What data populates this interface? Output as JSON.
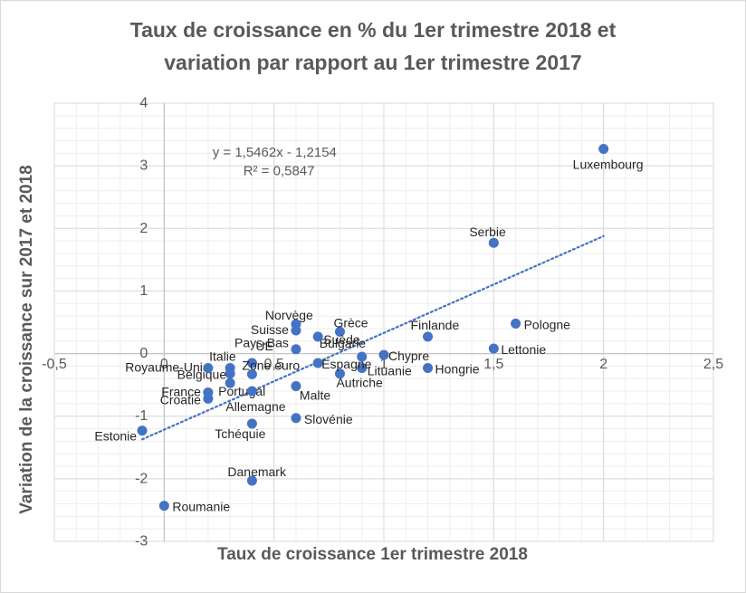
{
  "chart_data": {
    "type": "scatter",
    "title_line1": "Taux de croissance en % du 1er trimestre 2018 et",
    "title_line2": "variation par rapport au 1er trimestre 2017",
    "xlabel": "Taux de croissance 1er trimestre 2018",
    "ylabel": "Variation de la croissance sur 2017 et 2018",
    "xlim": [
      -0.5,
      2.5
    ],
    "ylim": [
      -3,
      4
    ],
    "xticks": [
      -0.5,
      0,
      0.5,
      1,
      1.5,
      2,
      2.5
    ],
    "xtick_labels": [
      "-0,5",
      "0",
      "0,5",
      "1",
      "1,5",
      "2",
      "2,5"
    ],
    "yticks": [
      -3,
      -2,
      -1,
      0,
      1,
      2,
      3,
      4
    ],
    "ytick_labels": [
      "-3",
      "-2",
      "-1",
      "0",
      "1",
      "2",
      "3",
      "4"
    ],
    "minor_gridlines": true,
    "marker_color": "#4472c4",
    "trendline": {
      "slope": 1.5462,
      "intercept": -1.2154,
      "x_range": [
        -0.1,
        2.0
      ],
      "equation": "y = 1,5462x - 1,2154",
      "r2": "R² = 0,5847",
      "color": "#4472c4"
    },
    "points": [
      {
        "label": "Luxembourg",
        "x": 2.0,
        "y": 3.27
      },
      {
        "label": "Serbie",
        "x": 1.5,
        "y": 1.77
      },
      {
        "label": "Pologne",
        "x": 1.6,
        "y": 0.48
      },
      {
        "label": "Lettonie",
        "x": 1.5,
        "y": 0.08
      },
      {
        "label": "Finlande",
        "x": 1.2,
        "y": 0.27
      },
      {
        "label": "Hongrie",
        "x": 1.2,
        "y": -0.23
      },
      {
        "label": "Chypre",
        "x": 1.0,
        "y": -0.02
      },
      {
        "label": "Bulgarie",
        "x": 0.9,
        "y": -0.05
      },
      {
        "label": "Lituanie",
        "x": 0.9,
        "y": -0.23
      },
      {
        "label": "Autriche",
        "x": 0.8,
        "y": -0.32
      },
      {
        "label": "Grèce",
        "x": 0.8,
        "y": 0.35
      },
      {
        "label": "Suède",
        "x": 0.7,
        "y": 0.27
      },
      {
        "label": "Espagne",
        "x": 0.7,
        "y": -0.15
      },
      {
        "label": "Norvège",
        "x": 0.6,
        "y": 0.47
      },
      {
        "label": "Suisse",
        "x": 0.6,
        "y": 0.37
      },
      {
        "label": "Pays-Bas",
        "x": 0.6,
        "y": 0.07
      },
      {
        "label": "Malte",
        "x": 0.6,
        "y": -0.52
      },
      {
        "label": "Slovénie",
        "x": 0.6,
        "y": -1.03
      },
      {
        "label": "UE",
        "x": 0.4,
        "y": -0.15
      },
      {
        "label": "Zone euro",
        "x": 0.4,
        "y": -0.33
      },
      {
        "label": "Portugal",
        "x": 0.3,
        "y": -0.47
      },
      {
        "label": "Allemagne",
        "x": 0.4,
        "y": -0.6
      },
      {
        "label": "Tchéquie",
        "x": 0.4,
        "y": -1.12
      },
      {
        "label": "Danemark",
        "x": 0.4,
        "y": -2.03
      },
      {
        "label": "Italie",
        "x": 0.3,
        "y": -0.23
      },
      {
        "label": "Belgique",
        "x": 0.3,
        "y": -0.32
      },
      {
        "label": "Royaume-Uni",
        "x": 0.2,
        "y": -0.23
      },
      {
        "label": "France",
        "x": 0.2,
        "y": -0.62
      },
      {
        "label": "Croatie",
        "x": 0.2,
        "y": -0.72
      },
      {
        "label": "Estonie",
        "x": -0.1,
        "y": -1.23
      },
      {
        "label": "Roumanie",
        "x": 0.0,
        "y": -2.43
      }
    ]
  }
}
